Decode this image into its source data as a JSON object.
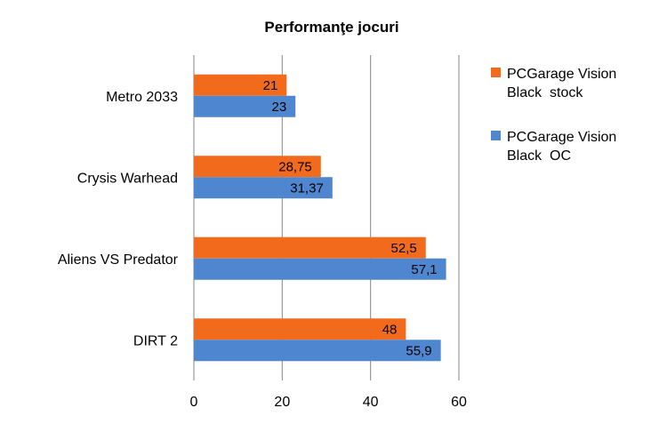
{
  "chart_data": {
    "type": "bar",
    "orientation": "horizontal",
    "title": "Performanţe jocuri",
    "categories": [
      "Metro 2033",
      "Crysis Warhead",
      "Aliens VS Predator",
      "DIRT 2"
    ],
    "series": [
      {
        "name": "PCGarage Vision Black  stock",
        "legend_lines": [
          "PCGarage Vision",
          "Black  stock"
        ],
        "values": [
          21,
          28.75,
          52.5,
          48
        ],
        "labels": [
          "21",
          "28,75",
          "52,5",
          "48"
        ],
        "color": "#f26b1d"
      },
      {
        "name": "PCGarage Vision Black  OC",
        "legend_lines": [
          "PCGarage Vision",
          "Black  OC"
        ],
        "values": [
          23,
          31.37,
          57.1,
          55.9
        ],
        "labels": [
          "23",
          "31,37",
          "57,1",
          "55,9"
        ],
        "color": "#4f86d0"
      }
    ],
    "xlim": [
      0,
      60
    ],
    "xticks": [
      "0",
      "20",
      "40",
      "60"
    ],
    "grid": true,
    "legend_position": "right"
  }
}
